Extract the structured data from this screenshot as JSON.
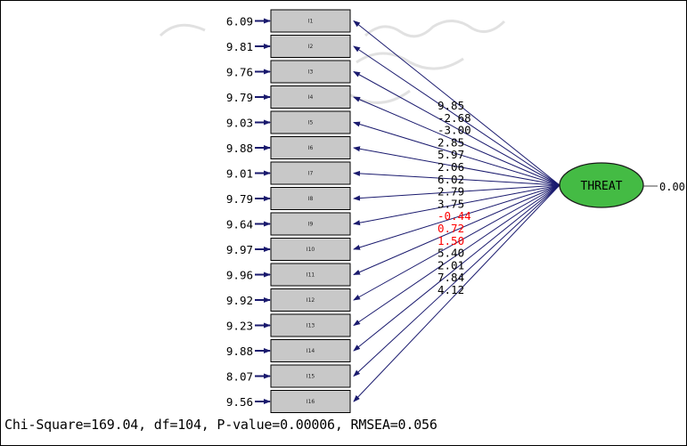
{
  "diagram": {
    "latent": {
      "label": "THREAT",
      "variance": "0.00",
      "fill": "#44bb44"
    },
    "indicators": [
      {
        "label": "I1",
        "error": "6.09",
        "loading": "9.85",
        "flag": false
      },
      {
        "label": "I2",
        "error": "9.81",
        "loading": "-2.68",
        "flag": false
      },
      {
        "label": "I3",
        "error": "9.76",
        "loading": "-3.00",
        "flag": false
      },
      {
        "label": "I4",
        "error": "9.79",
        "loading": "2.85",
        "flag": false
      },
      {
        "label": "I5",
        "error": "9.03",
        "loading": "5.97",
        "flag": false
      },
      {
        "label": "I6",
        "error": "9.88",
        "loading": "2.06",
        "flag": false
      },
      {
        "label": "I7",
        "error": "9.01",
        "loading": "6.02",
        "flag": false
      },
      {
        "label": "I8",
        "error": "9.79",
        "loading": "2.79",
        "flag": false
      },
      {
        "label": "I9",
        "error": "9.64",
        "loading": "3.75",
        "flag": false
      },
      {
        "label": "I10",
        "error": "9.97",
        "loading": "-0.44",
        "flag": true
      },
      {
        "label": "I11",
        "error": "9.96",
        "loading": "0.72",
        "flag": true
      },
      {
        "label": "I12",
        "error": "9.92",
        "loading": "1.50",
        "flag": true
      },
      {
        "label": "I13",
        "error": "9.23",
        "loading": "5.40",
        "flag": false
      },
      {
        "label": "I14",
        "error": "9.88",
        "loading": "2.01",
        "flag": false
      },
      {
        "label": "I15",
        "error": "8.07",
        "loading": "7.84",
        "flag": false
      },
      {
        "label": "I16",
        "error": "9.56",
        "loading": "4.12",
        "flag": false
      }
    ],
    "colors": {
      "arrow": "#1a1a6e",
      "flag_text": "#ff0000",
      "box_fill": "#c8c8c8"
    }
  },
  "footer": {
    "fit_stats": "Chi-Square=169.04, df=104, P-value=0.00006, RMSEA=0.056"
  }
}
